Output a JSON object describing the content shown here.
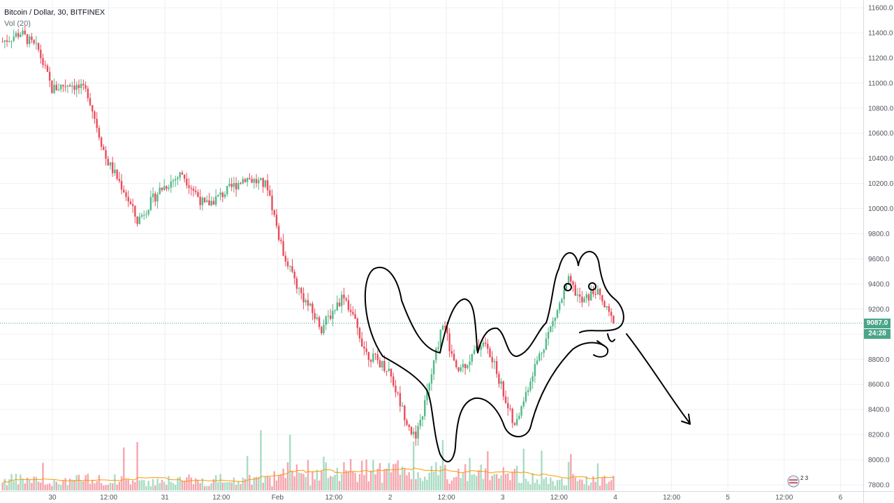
{
  "legend": {
    "symbol": "Bitcoin / Dollar, 30, BITFINEX",
    "volume": "Vol (20)"
  },
  "colors": {
    "up": "#53b987",
    "down": "#eb4d5c",
    "up_volume": "#a9dcc3",
    "down_volume": "#f5a6ae",
    "volume_ma": "#ff9800",
    "grid": "#edf0f4",
    "current_price_line": "#4aa589",
    "drawing": "#000000",
    "axis_text": "#50535e"
  },
  "price_labels": {
    "current_price": "9087.0",
    "countdown": "24:28"
  },
  "chart_data": {
    "type": "candlestick",
    "symbol": "BTCUSD",
    "exchange": "BITFINEX",
    "interval": "30",
    "ylim": [
      7760,
      11640
    ],
    "y_ticks": [
      7800,
      8000,
      8200,
      8400,
      8600,
      8800,
      9000,
      9200,
      9400,
      9600,
      9800,
      10000,
      10200,
      10400,
      10600,
      10800,
      11000,
      11200,
      11400,
      11600
    ],
    "y_tick_labels": [
      "7800.0",
      "8000.0",
      "8200.0",
      "8400.0",
      "8600.0",
      "8800.0",
      "9000.0",
      "9200.0",
      "9400.0",
      "9600.0",
      "9800.0",
      "10000.0",
      "10200.0",
      "10400.0",
      "10600.0",
      "10800.0",
      "11000.0",
      "11200.0",
      "11400.0",
      "11600.0"
    ],
    "x_tick_labels": [
      "30",
      "12:00",
      "31",
      "12:00",
      "Feb",
      "12:00",
      "2",
      "12:00",
      "3",
      "12:00",
      "4",
      "12:00",
      "5",
      "12:00",
      "6"
    ],
    "current_price": 9087.0,
    "price_path": [
      {
        "bar": 0,
        "price": 11330
      },
      {
        "bar": 8,
        "price": 11400
      },
      {
        "bar": 16,
        "price": 11260
      },
      {
        "bar": 22,
        "price": 10950
      },
      {
        "bar": 30,
        "price": 11000
      },
      {
        "bar": 38,
        "price": 10920
      },
      {
        "bar": 46,
        "price": 10400
      },
      {
        "bar": 54,
        "price": 10150
      },
      {
        "bar": 60,
        "price": 9900
      },
      {
        "bar": 70,
        "price": 10150
      },
      {
        "bar": 80,
        "price": 10280
      },
      {
        "bar": 90,
        "price": 10020
      },
      {
        "bar": 100,
        "price": 10140
      },
      {
        "bar": 108,
        "price": 10250
      },
      {
        "bar": 118,
        "price": 10180
      },
      {
        "bar": 124,
        "price": 9700
      },
      {
        "bar": 132,
        "price": 9350
      },
      {
        "bar": 142,
        "price": 9050
      },
      {
        "bar": 152,
        "price": 9320
      },
      {
        "bar": 162,
        "price": 8850
      },
      {
        "bar": 172,
        "price": 8720
      },
      {
        "bar": 178,
        "price": 8400
      },
      {
        "bar": 184,
        "price": 8150
      },
      {
        "bar": 190,
        "price": 8600
      },
      {
        "bar": 196,
        "price": 9100
      },
      {
        "bar": 202,
        "price": 8700
      },
      {
        "bar": 208,
        "price": 8800
      },
      {
        "bar": 214,
        "price": 8950
      },
      {
        "bar": 220,
        "price": 8700
      },
      {
        "bar": 228,
        "price": 8250
      },
      {
        "bar": 236,
        "price": 8700
      },
      {
        "bar": 244,
        "price": 9050
      },
      {
        "bar": 252,
        "price": 9420
      },
      {
        "bar": 258,
        "price": 9250
      },
      {
        "bar": 264,
        "price": 9350
      },
      {
        "bar": 272,
        "price": 9087
      }
    ],
    "volume_indicator": "Vol (20)"
  }
}
